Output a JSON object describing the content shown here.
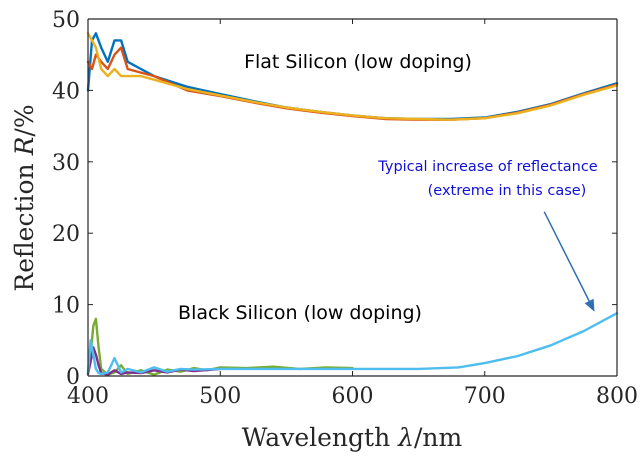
{
  "chart_data": {
    "type": "line",
    "xlabel": {
      "prefix": "Wavelength ",
      "symbol": "λ",
      "suffix": "/nm"
    },
    "ylabel": {
      "prefix": "Reflection ",
      "symbol": "R",
      "suffix": "/%"
    },
    "xlim": [
      400,
      800
    ],
    "ylim": [
      0,
      50
    ],
    "xticks": [
      400,
      500,
      600,
      700,
      800
    ],
    "yticks": [
      0,
      10,
      20,
      30,
      40,
      50
    ],
    "grid": false,
    "annotations": {
      "flat_label": "Flat Silicon (low doping)",
      "black_label": "Black Silicon (low doping)",
      "increase_line1": "Typical increase of reflectance",
      "increase_line2": "(extreme in this case)",
      "arrow_from": {
        "x": 745,
        "y": 23
      },
      "arrow_to": {
        "x": 783,
        "y": 9
      }
    },
    "series": [
      {
        "group": "flat",
        "color": "#0072BD",
        "x": [
          400,
          403,
          406,
          410,
          415,
          420,
          425,
          430,
          440,
          450,
          475,
          500,
          525,
          550,
          575,
          600,
          625,
          650,
          675,
          700,
          725,
          750,
          775,
          800
        ],
        "y": [
          40,
          47,
          48,
          46,
          44,
          47,
          47,
          44,
          43,
          42,
          40.5,
          39.5,
          38.5,
          37.6,
          37,
          36.5,
          36.1,
          36,
          36,
          36.2,
          37,
          38.1,
          39.6,
          41
        ]
      },
      {
        "group": "flat",
        "color": "#D95319",
        "x": [
          400,
          403,
          406,
          410,
          415,
          420,
          425,
          430,
          440,
          450,
          475,
          500,
          525,
          550,
          575,
          600,
          625,
          650,
          675,
          700,
          725,
          750,
          775,
          800
        ],
        "y": [
          44,
          43,
          45,
          44,
          43,
          45,
          46,
          43,
          42.5,
          42,
          40,
          39.2,
          38.3,
          37.5,
          36.9,
          36.4,
          36,
          35.9,
          35.9,
          36.1,
          36.9,
          38,
          39.5,
          40.8
        ]
      },
      {
        "group": "flat",
        "color": "#EDB120",
        "x": [
          400,
          403,
          406,
          410,
          415,
          420,
          425,
          430,
          440,
          450,
          475,
          500,
          525,
          550,
          575,
          600,
          625,
          650,
          675,
          700,
          725,
          750,
          775,
          800
        ],
        "y": [
          48,
          47,
          46,
          43,
          42,
          43,
          42,
          42,
          42,
          41.5,
          40.2,
          39.3,
          38.4,
          37.6,
          37,
          36.5,
          36.1,
          36,
          35.9,
          36.1,
          36.8,
          37.9,
          39.4,
          40.7
        ]
      },
      {
        "group": "black",
        "color": "#77AC30",
        "x": [
          400,
          402,
          404,
          406,
          408,
          410,
          415,
          420,
          425,
          430,
          440,
          450,
          460,
          470,
          480,
          490,
          500,
          520,
          540,
          560,
          580,
          600
        ],
        "y": [
          0.5,
          3,
          7,
          8,
          4,
          1,
          0.2,
          0.5,
          1.5,
          0.3,
          0.8,
          0.2,
          0.9,
          0.6,
          1.1,
          0.8,
          1.2,
          1.1,
          1.3,
          1,
          1.2,
          1.1
        ]
      },
      {
        "group": "black",
        "color": "#7E2F8E",
        "x": [
          400,
          402,
          404,
          406,
          408,
          410,
          415,
          420,
          425,
          430,
          440,
          450,
          460,
          470,
          480,
          500
        ],
        "y": [
          0.3,
          2,
          4,
          3,
          1.5,
          0.4,
          0.2,
          0.8,
          0.3,
          0.5,
          0.4,
          0.8,
          0.5,
          0.9,
          0.7,
          1
        ]
      },
      {
        "group": "black",
        "color": "#4DBEEE",
        "x": [
          400,
          402,
          404,
          406,
          408,
          410,
          415,
          420,
          425,
          430,
          440,
          450,
          460,
          470,
          480,
          500,
          550,
          600,
          650,
          680,
          700,
          725,
          750,
          775,
          800
        ],
        "y": [
          0.5,
          5,
          3,
          1,
          0.4,
          0.3,
          0.5,
          2.5,
          0.5,
          1,
          0.5,
          1.2,
          0.6,
          1,
          0.9,
          1,
          1,
          1,
          1,
          1.2,
          1.8,
          2.8,
          4.3,
          6.3,
          8.8
        ]
      }
    ]
  }
}
